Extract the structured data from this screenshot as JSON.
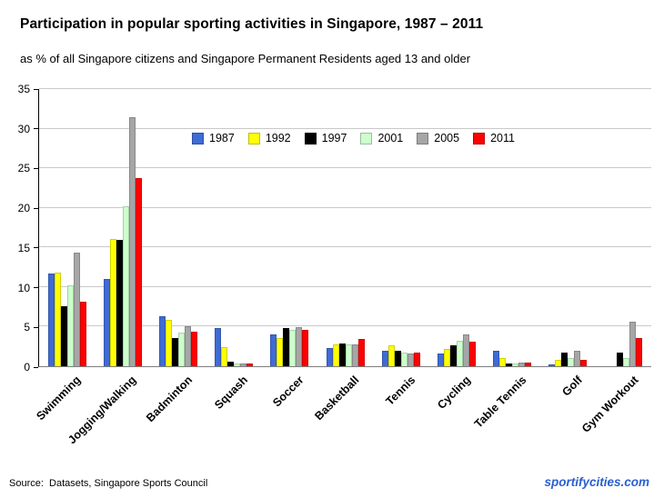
{
  "chart_data": {
    "type": "bar",
    "title": "Participation in popular sporting activities in Singapore, 1987 – 2011",
    "subtitle": "as % of all Singapore citizens and Singapore Permanent Residents aged 13 and older",
    "categories": [
      "Swimming",
      "Jogging/Walking",
      "Badminton",
      "Squash",
      "Soccer",
      "Basketball",
      "Tennis",
      "Cycling",
      "Table Tennis",
      "Golf",
      "Gym Workout"
    ],
    "series": [
      {
        "name": "1987",
        "color": "#3f6bd6",
        "values": [
          11.7,
          11.0,
          6.3,
          4.8,
          4.0,
          2.3,
          1.9,
          1.6,
          1.9,
          0.2,
          0.0
        ]
      },
      {
        "name": "1992",
        "color": "#ffff00",
        "values": [
          11.8,
          16.1,
          5.9,
          2.4,
          3.6,
          2.8,
          2.6,
          2.2,
          1.0,
          0.8,
          0.0
        ]
      },
      {
        "name": "1997",
        "color": "#000000",
        "values": [
          7.6,
          16.0,
          3.6,
          0.6,
          4.8,
          2.9,
          2.0,
          2.6,
          0.3,
          1.7,
          1.7
        ]
      },
      {
        "name": "2001",
        "color": "#ccffcc",
        "values": [
          10.2,
          20.2,
          4.2,
          0.4,
          4.6,
          2.7,
          1.7,
          3.2,
          0.4,
          1.0,
          1.0
        ]
      },
      {
        "name": "2005",
        "color": "#a6a6a6",
        "values": [
          14.4,
          31.5,
          5.0,
          0.3,
          4.9,
          2.8,
          1.6,
          4.0,
          0.5,
          2.0,
          5.6
        ]
      },
      {
        "name": "2011",
        "color": "#ff0000",
        "values": [
          8.2,
          23.7,
          4.4,
          0.4,
          4.6,
          3.4,
          1.7,
          3.1,
          0.5,
          0.8,
          3.6
        ]
      }
    ],
    "ylim": [
      0,
      35
    ],
    "yticks": [
      0,
      5,
      10,
      15,
      20,
      25,
      30,
      35
    ],
    "xlabel": "",
    "ylabel": "",
    "grid": true,
    "legend_position": "top-inside",
    "gridline_color": "#c9c9c9",
    "axis_color": "#000000"
  },
  "footer": {
    "source": "Source:  Datasets, Singapore Sports Council",
    "watermark": "sportifycities.com",
    "watermark_color": "#2a5fd0"
  }
}
